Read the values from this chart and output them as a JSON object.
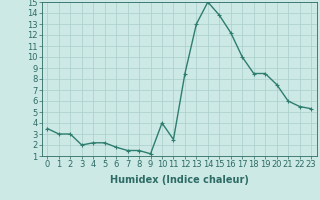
{
  "x": [
    0,
    1,
    2,
    3,
    4,
    5,
    6,
    7,
    8,
    9,
    10,
    11,
    12,
    13,
    14,
    15,
    16,
    17,
    18,
    19,
    20,
    21,
    22,
    23
  ],
  "y": [
    3.5,
    3.0,
    3.0,
    2.0,
    2.2,
    2.2,
    1.8,
    1.5,
    1.5,
    1.2,
    4.0,
    2.5,
    8.5,
    13.0,
    15.0,
    13.8,
    12.2,
    10.0,
    8.5,
    8.5,
    7.5,
    6.0,
    5.5,
    5.3
  ],
  "line_color": "#2e7d6e",
  "marker": "+",
  "marker_size": 3.5,
  "bg_color": "#cce9e6",
  "grid_color": "#aacfcc",
  "xlabel": "Humidex (Indice chaleur)",
  "xlim": [
    -0.5,
    23.5
  ],
  "ylim": [
    1,
    15
  ],
  "yticks": [
    1,
    2,
    3,
    4,
    5,
    6,
    7,
    8,
    9,
    10,
    11,
    12,
    13,
    14,
    15
  ],
  "xticks": [
    0,
    1,
    2,
    3,
    4,
    5,
    6,
    7,
    8,
    9,
    10,
    11,
    12,
    13,
    14,
    15,
    16,
    17,
    18,
    19,
    20,
    21,
    22,
    23
  ],
  "font_color": "#2e6b64",
  "xlabel_fontsize": 7.0,
  "tick_fontsize": 6.0,
  "linewidth": 1.0
}
